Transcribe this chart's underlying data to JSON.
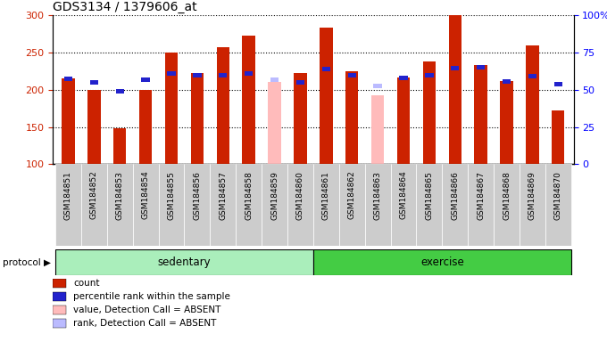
{
  "title": "GDS3134 / 1379606_at",
  "samples": [
    "GSM184851",
    "GSM184852",
    "GSM184853",
    "GSM184854",
    "GSM184855",
    "GSM184856",
    "GSM184857",
    "GSM184858",
    "GSM184859",
    "GSM184860",
    "GSM184861",
    "GSM184862",
    "GSM184863",
    "GSM184864",
    "GSM184865",
    "GSM184866",
    "GSM184867",
    "GSM184868",
    "GSM184869",
    "GSM184870"
  ],
  "count_values": [
    215,
    200,
    148,
    200,
    250,
    222,
    257,
    273,
    210,
    222,
    283,
    225,
    192,
    217,
    238,
    300,
    233,
    212,
    260,
    172
  ],
  "rank_values": [
    215,
    210,
    198,
    213,
    222,
    219,
    220,
    222,
    null,
    210,
    228,
    220,
    null,
    216,
    220,
    229,
    230,
    211,
    218,
    208
  ],
  "absent_count": [
    null,
    null,
    null,
    null,
    null,
    null,
    null,
    null,
    210,
    null,
    null,
    null,
    192,
    null,
    null,
    null,
    null,
    null,
    null,
    null
  ],
  "absent_rank": [
    null,
    null,
    null,
    null,
    null,
    null,
    null,
    null,
    213,
    null,
    null,
    null,
    205,
    null,
    null,
    null,
    null,
    null,
    null,
    null
  ],
  "sedentary_count": 10,
  "exercise_count": 10,
  "ylim": [
    100,
    300
  ],
  "yticks_left": [
    100,
    150,
    200,
    250,
    300
  ],
  "yticks_right": [
    0,
    25,
    50,
    75,
    100
  ],
  "bar_color": "#cc2200",
  "rank_color": "#2222cc",
  "absent_bar_color": "#ffbbbb",
  "absent_rank_color": "#bbbbff",
  "sedentary_color": "#aaeebb",
  "exercise_color": "#44cc44",
  "ticklabel_bg": "#cccccc",
  "plot_bg": "#ffffff",
  "bar_width": 0.5
}
